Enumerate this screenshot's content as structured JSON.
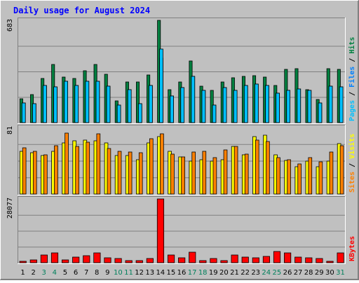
{
  "title": "Daily usage for August 2024",
  "colors": {
    "background": "#c0c0c0",
    "title": "#0000ff",
    "hits": "#008040",
    "files": "#0080ff",
    "pages": "#00c0ff",
    "visits": "#ffff00",
    "sites": "#ff8000",
    "kbytes": "#ff0000",
    "weekend": "#00805c"
  },
  "chart_data": [
    {
      "type": "bar",
      "panel": "hits-files-pages",
      "ymax_label": "683",
      "ylim": [
        0,
        683
      ],
      "right_labels": [
        "Pages",
        "Files",
        "Hits"
      ],
      "categories": [
        "1",
        "2",
        "3",
        "4",
        "5",
        "6",
        "7",
        "8",
        "9",
        "10",
        "11",
        "12",
        "13",
        "14",
        "15",
        "16",
        "17",
        "18",
        "19",
        "20",
        "21",
        "22",
        "23",
        "24",
        "25",
        "26",
        "27",
        "28",
        "29",
        "30",
        "31"
      ],
      "weekend_days": [
        "3",
        "4",
        "10",
        "11",
        "17",
        "18",
        "24",
        "25",
        "31"
      ],
      "series": [
        {
          "name": "Hits",
          "values": [
            160,
            185,
            295,
            390,
            305,
            295,
            345,
            390,
            325,
            145,
            270,
            270,
            320,
            683,
            220,
            270,
            410,
            245,
            215,
            270,
            300,
            310,
            315,
            305,
            250,
            355,
            360,
            220,
            155,
            360,
            355
          ]
        },
        {
          "name": "Files",
          "values": [
            130,
            125,
            250,
            240,
            275,
            250,
            275,
            275,
            245,
            115,
            220,
            125,
            250,
            430,
            180,
            235,
            310,
            215,
            115,
            235,
            215,
            250,
            255,
            250,
            195,
            215,
            225,
            215,
            130,
            245,
            240
          ]
        },
        {
          "name": "Pages",
          "values": [
            130,
            125,
            250,
            240,
            275,
            250,
            275,
            275,
            245,
            115,
            220,
            125,
            250,
            490,
            180,
            235,
            310,
            215,
            115,
            235,
            215,
            250,
            255,
            250,
            195,
            215,
            225,
            215,
            130,
            245,
            240
          ]
        }
      ]
    },
    {
      "type": "bar",
      "panel": "visits-sites",
      "ymax_label": "81",
      "ylim": [
        0,
        81
      ],
      "right_labels": [
        "Sites",
        "Visits"
      ],
      "categories": [
        "1",
        "2",
        "3",
        "4",
        "5",
        "6",
        "7",
        "8",
        "9",
        "10",
        "11",
        "12",
        "13",
        "14",
        "15",
        "16",
        "17",
        "18",
        "19",
        "20",
        "21",
        "22",
        "23",
        "24",
        "25",
        "26",
        "27",
        "28",
        "29",
        "30",
        "31"
      ],
      "series": [
        {
          "name": "Visits",
          "values": [
            52,
            50,
            47,
            52,
            62,
            65,
            66,
            65,
            62,
            47,
            47,
            42,
            62,
            70,
            52,
            45,
            40,
            42,
            40,
            42,
            58,
            48,
            70,
            72,
            48,
            41,
            33,
            40,
            33,
            40,
            61
          ]
        },
        {
          "name": "Sites",
          "values": [
            56,
            52,
            48,
            59,
            74,
            58,
            63,
            73,
            55,
            52,
            51,
            50,
            67,
            73,
            49,
            45,
            51,
            52,
            44,
            54,
            58,
            49,
            66,
            64,
            44,
            42,
            37,
            44,
            39,
            51,
            59
          ]
        }
      ]
    },
    {
      "type": "bar",
      "panel": "kbytes",
      "ymax_label": "28077",
      "ylim": [
        0,
        28077
      ],
      "right_labels": [
        "KBytes"
      ],
      "categories": [
        "1",
        "2",
        "3",
        "4",
        "5",
        "6",
        "7",
        "8",
        "9",
        "10",
        "11",
        "12",
        "13",
        "14",
        "15",
        "16",
        "17",
        "18",
        "19",
        "20",
        "21",
        "22",
        "23",
        "24",
        "25",
        "26",
        "27",
        "28",
        "29",
        "30",
        "31"
      ],
      "series": [
        {
          "name": "KBytes",
          "values": [
            700,
            1100,
            3500,
            4400,
            1300,
            2600,
            3100,
            4200,
            2300,
            1700,
            1000,
            950,
            2000,
            28077,
            3400,
            2300,
            4500,
            900,
            1900,
            1000,
            3300,
            2600,
            2300,
            2800,
            4800,
            4400,
            2600,
            2200,
            2000,
            650,
            4300
          ]
        }
      ]
    }
  ]
}
